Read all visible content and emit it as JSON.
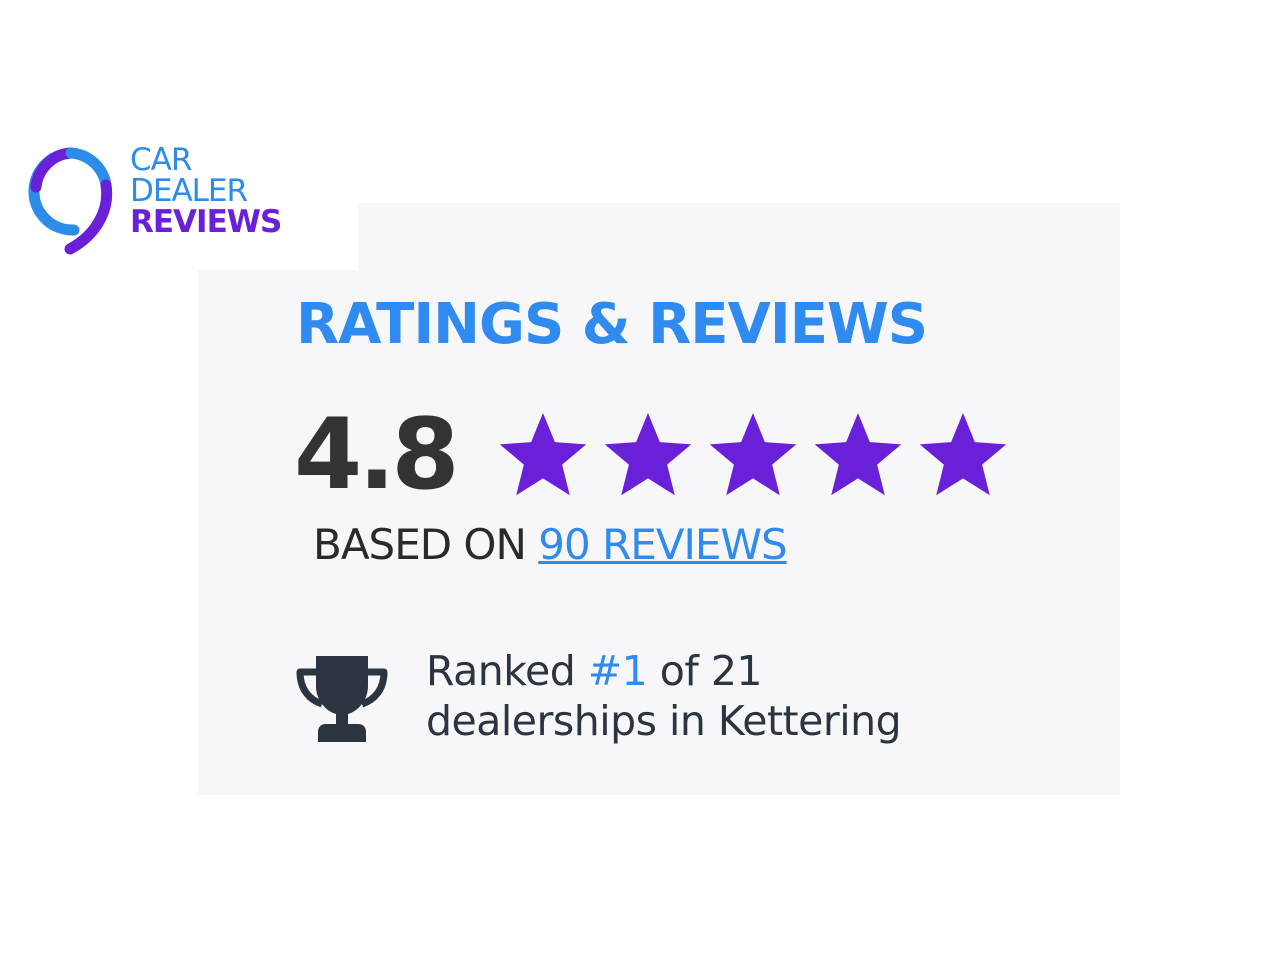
{
  "logo": {
    "line1": "CAR",
    "line2": "DEALER",
    "line3": "REVIEWS"
  },
  "widget": {
    "title": "RATINGS & REVIEWS",
    "score": "4.8",
    "stars": 5,
    "rating_value": 4.8,
    "based_on_label": "BASED ON",
    "reviews_link": "90 REVIEWS",
    "rank_prefix": "Ranked",
    "rank_value": "#1",
    "rank_suffix": "of 21",
    "rank_line2": "dealerships in Kettering",
    "trophy_icon": "trophy-icon"
  },
  "colors": {
    "blue": "#2f8bef",
    "purple": "#6a1fd8",
    "dark": "#333333",
    "panel": "#f7f7f9"
  }
}
